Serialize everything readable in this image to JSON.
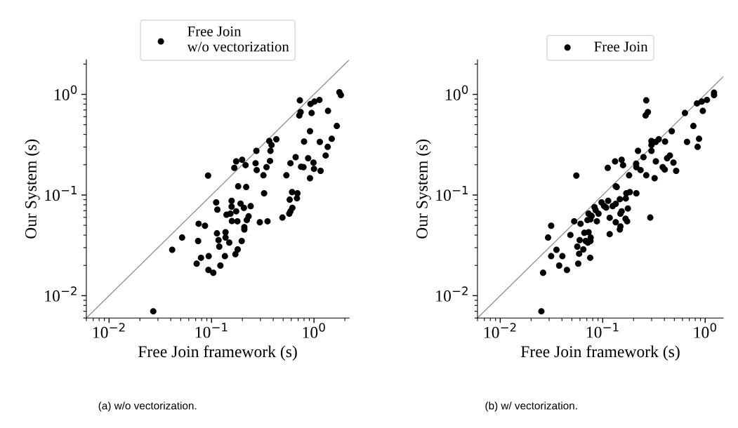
{
  "chart_data": [
    {
      "type": "scatter",
      "xlabel": "Free Join framework (s)",
      "ylabel": "Our System (s)",
      "log": "xy",
      "legend": "top",
      "grid": false,
      "xlim": [
        0.006,
        2.2
      ],
      "ylim": [
        0.006,
        2.2
      ],
      "xticks": [
        {
          "value": 0.01,
          "label": "10$^{−2}$"
        },
        {
          "value": 0.1,
          "label": "10$^{−1}$"
        },
        {
          "value": 1,
          "label": "10$^{0}$"
        }
      ],
      "yticks": [
        {
          "value": 0.01,
          "label": "10$^{−2}$"
        },
        {
          "value": 0.1,
          "label": "10$^{−1}$"
        },
        {
          "value": 1,
          "label": "10$^{0}$"
        }
      ],
      "annotations": [
        "(a) w/o vectorization."
      ],
      "series": [
        {
          "name": "Free Join\nw/o vectorization",
          "color": "#000000",
          "marker": "circle",
          "x": [
            0.0925,
            0.174,
            0.199,
            0.167,
            0.215,
            0.274,
            0.269,
            0.276,
            0.321,
            0.344,
            0.372,
            0.376,
            0.385,
            0.366,
            0.429,
            0.728,
            0.74,
            0.719,
            0.925,
            1.01,
            1.13,
            0.948,
            1.37,
            1.77,
            1.83,
            1.67,
            0.914,
            0.8,
            1.14,
            1.49,
            1.36,
            1.3,
            0.662,
            0.589,
            0.877,
            0.989,
            0.748,
            0.789,
            1.0,
            1.16,
            0.538,
            0.914,
            0.182,
            0.218,
            0.326,
            0.611,
            0.69,
            0.682,
            0.579,
            0.615,
            0.589,
            0.574,
            0.492,
            0.296,
            0.352,
            0.111,
            0.114,
            0.157,
            0.157,
            0.192,
            0.207,
            0.241,
            0.174,
            0.14,
            0.153,
            0.23,
            0.221,
            0.158,
            0.179,
            0.0748,
            0.0863,
            0.209,
            0.209,
            0.113,
            0.137,
            0.117,
            0.137,
            0.149,
            0.197,
            0.119,
            0.0516,
            0.074,
            0.0413,
            0.18,
            0.171,
            0.0789,
            0.0938,
            0.135,
            0.0716,
            0.122,
            0.0933,
            0.104,
            0.027
          ],
          "values": [
            0.156,
            0.216,
            0.224,
            0.186,
            0.198,
            0.275,
            0.207,
            0.177,
            0.157,
            0.189,
            0.218,
            0.275,
            0.314,
            0.344,
            0.358,
            0.871,
            0.667,
            0.617,
            0.803,
            0.847,
            0.881,
            0.653,
            0.685,
            1.05,
            0.984,
            0.485,
            0.431,
            0.34,
            0.337,
            0.362,
            0.301,
            0.247,
            0.238,
            0.207,
            0.232,
            0.21,
            0.191,
            0.189,
            0.182,
            0.174,
            0.157,
            0.147,
            0.122,
            0.12,
            0.104,
            0.107,
            0.104,
            0.0928,
            0.0899,
            0.0746,
            0.0689,
            0.0653,
            0.0597,
            0.0537,
            0.0548,
            0.0844,
            0.0716,
            0.0876,
            0.0767,
            0.0822,
            0.0746,
            0.0775,
            0.0689,
            0.0637,
            0.0653,
            0.0614,
            0.0564,
            0.0551,
            0.0548,
            0.0518,
            0.0495,
            0.048,
            0.0455,
            0.0416,
            0.0427,
            0.0356,
            0.0378,
            0.0337,
            0.0349,
            0.0307,
            0.0378,
            0.0349,
            0.0286,
            0.0288,
            0.0258,
            0.0238,
            0.0247,
            0.0247,
            0.0208,
            0.0199,
            0.018,
            0.0169,
            0.007
          ]
        },
        {
          "type": "line",
          "color": "#8c8c8c",
          "x": [
            0.006,
            2.2
          ],
          "values": [
            0.006,
            2.2
          ]
        }
      ]
    },
    {
      "type": "scatter",
      "xlabel": "Free Join framework (s)",
      "ylabel": "Our System (s)",
      "log": "xy",
      "legend": "top",
      "grid": false,
      "xlim": [
        0.006,
        1.5
      ],
      "ylim": [
        0.006,
        2.2
      ],
      "xticks": [
        {
          "value": 0.01,
          "label": "10$^{−2}$"
        },
        {
          "value": 0.1,
          "label": "10$^{−1}$"
        },
        {
          "value": 1,
          "label": "10$^{0}$"
        }
      ],
      "yticks": [
        {
          "value": 0.01,
          "label": "10$^{−2}$"
        },
        {
          "value": 0.1,
          "label": "10$^{−1}$"
        },
        {
          "value": 1,
          "label": "10$^{0}$"
        }
      ],
      "annotations": [
        "(b) w/ vectorization."
      ],
      "series": [
        {
          "name": "Free Join",
          "color": "#000000",
          "marker": "circle",
          "x": [
            0.0553,
            0.112,
            0.132,
            0.153,
            0.158,
            0.181,
            0.212,
            0.213,
            0.234,
            0.221,
            0.25,
            0.266,
            0.266,
            0.276,
            0.262,
            0.299,
            0.299,
            0.299,
            0.329,
            0.352,
            0.406,
            0.472,
            0.33,
            0.321,
            0.385,
            0.403,
            0.425,
            0.452,
            0.49,
            0.521,
            0.634,
            0.665,
            0.767,
            0.843,
            0.871,
            0.832,
            0.925,
            1.04,
            0.948,
            1.22,
            1.22,
            0.134,
            0.137,
            0.184,
            0.213,
            0.17,
            0.168,
            0.147,
            0.113,
            0.0975,
            0.103,
            0.108,
            0.125,
            0.134,
            0.0832,
            0.0853,
            0.176,
            0.153,
            0.149,
            0.0728,
            0.091,
            0.078,
            0.071,
            0.0759,
            0.0877,
            0.117,
            0.134,
            0.167,
            0.173,
            0.149,
            0.147,
            0.291,
            0.0527,
            0.0608,
            0.0314,
            0.0293,
            0.0484,
            0.0662,
            0.0728,
            0.0596,
            0.0683,
            0.0763,
            0.0759,
            0.0716,
            0.0565,
            0.0354,
            0.0647,
            0.0589,
            0.0314,
            0.0404,
            0.0755,
            0.0376,
            0.0577,
            0.0448,
            0.0262,
            0.0252,
            0.117
          ],
          "values": [
            0.156,
            0.186,
            0.216,
            0.224,
            0.198,
            0.157,
            0.205,
            0.189,
            0.177,
            0.275,
            0.238,
            0.157,
            0.871,
            0.667,
            0.617,
            0.275,
            0.314,
            0.344,
            0.337,
            0.358,
            0.34,
            0.431,
            0.216,
            0.147,
            0.189,
            0.179,
            0.232,
            0.247,
            0.21,
            0.174,
            0.653,
            0.337,
            0.485,
            0.301,
            0.362,
            0.813,
            0.847,
            0.881,
            0.685,
            1.04,
            0.984,
            0.122,
            0.12,
            0.107,
            0.104,
            0.104,
            0.0924,
            0.0909,
            0.0876,
            0.0844,
            0.0779,
            0.075,
            0.0775,
            0.0817,
            0.0758,
            0.0708,
            0.0735,
            0.0689,
            0.0653,
            0.0653,
            0.0653,
            0.0619,
            0.0564,
            0.0573,
            0.0548,
            0.0594,
            0.0537,
            0.0581,
            0.0548,
            0.0488,
            0.0455,
            0.0597,
            0.0548,
            0.0518,
            0.0495,
            0.0378,
            0.0401,
            0.0421,
            0.0427,
            0.0356,
            0.0349,
            0.0378,
            0.0349,
            0.0337,
            0.0307,
            0.0286,
            0.0288,
            0.0261,
            0.0247,
            0.0247,
            0.0238,
            0.0199,
            0.0208,
            0.018,
            0.0169,
            0.007,
            0.0409
          ]
        },
        {
          "type": "line",
          "color": "#8c8c8c",
          "x": [
            0.006,
            1.5
          ],
          "values": [
            0.006,
            1.5
          ]
        }
      ]
    }
  ]
}
